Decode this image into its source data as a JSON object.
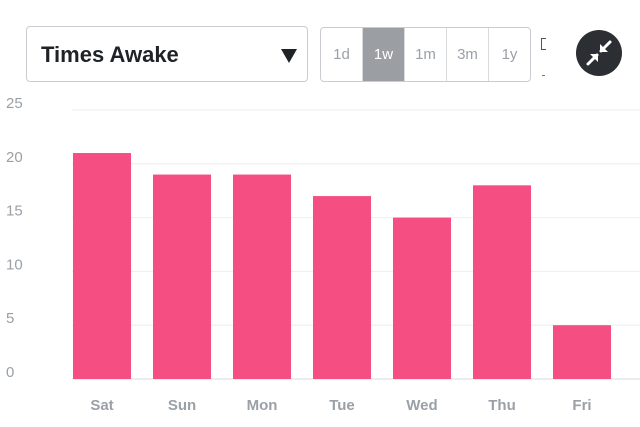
{
  "metric_select": {
    "value": "Times Awake"
  },
  "range_tabs": [
    "1d",
    "1w",
    "1m",
    "3m",
    "1y"
  ],
  "active_range": "1w",
  "chart_data": {
    "type": "bar",
    "categories": [
      "Sat",
      "Sun",
      "Mon",
      "Tue",
      "Wed",
      "Thu",
      "Fri"
    ],
    "values": [
      21,
      19,
      19,
      17,
      15,
      18,
      5
    ],
    "yticks": [
      "0",
      "5",
      "10",
      "15",
      "20",
      "25"
    ],
    "ylim": [
      0,
      25
    ],
    "grid": true,
    "bar_color": "#f44e83"
  },
  "colors": {
    "gridline": "#eceef0",
    "axis": "#d8dbde",
    "active_tab": "#9b9fa3"
  }
}
